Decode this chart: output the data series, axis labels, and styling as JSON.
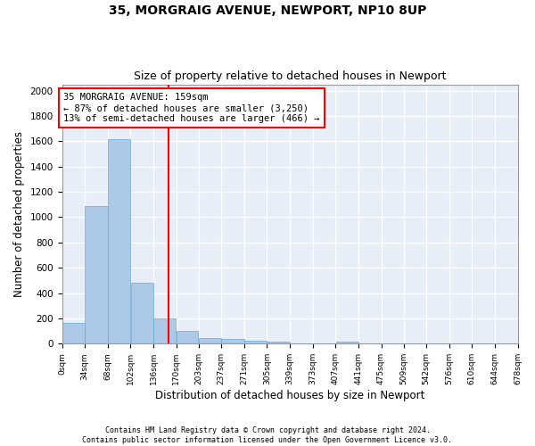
{
  "title": "35, MORGRAIG AVENUE, NEWPORT, NP10 8UP",
  "subtitle": "Size of property relative to detached houses in Newport",
  "xlabel": "Distribution of detached houses by size in Newport",
  "ylabel": "Number of detached properties",
  "bar_color": "#adc9e8",
  "bar_edgecolor": "#6aaad4",
  "background_color": "#e8eef8",
  "grid_color": "#ffffff",
  "vline_x": 159,
  "vline_color": "red",
  "annotation_text": "35 MORGRAIG AVENUE: 159sqm\n← 87% of detached houses are smaller (3,250)\n13% of semi-detached houses are larger (466) →",
  "annotation_box_color": "red",
  "footnote": "Contains HM Land Registry data © Crown copyright and database right 2024.\nContains public sector information licensed under the Open Government Licence v3.0.",
  "bin_edges": [
    0,
    34,
    68,
    102,
    136,
    170,
    203,
    237,
    271,
    305,
    339,
    373,
    407,
    441,
    475,
    509,
    542,
    576,
    610,
    644,
    678
  ],
  "bin_labels": [
    "0sqm",
    "34sqm",
    "68sqm",
    "102sqm",
    "136sqm",
    "170sqm",
    "203sqm",
    "237sqm",
    "271sqm",
    "305sqm",
    "339sqm",
    "373sqm",
    "407sqm",
    "441sqm",
    "475sqm",
    "509sqm",
    "542sqm",
    "576sqm",
    "610sqm",
    "644sqm",
    "678sqm"
  ],
  "bar_heights": [
    165,
    1090,
    1620,
    480,
    200,
    100,
    45,
    35,
    25,
    15,
    0,
    0,
    20,
    0,
    0,
    0,
    0,
    0,
    0,
    0
  ],
  "ylim": [
    0,
    2050
  ],
  "yticks": [
    0,
    200,
    400,
    600,
    800,
    1000,
    1200,
    1400,
    1600,
    1800,
    2000
  ]
}
